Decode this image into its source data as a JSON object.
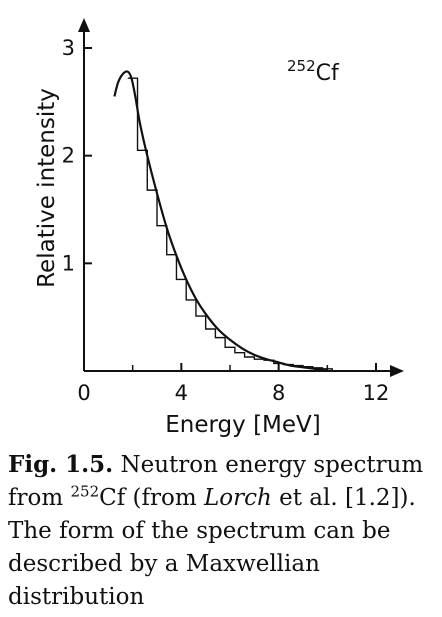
{
  "chart_data": {
    "type": "line",
    "xlabel": "Energy [MeV]",
    "ylabel": "Relative intensity",
    "annotation": {
      "mass": "252",
      "element": "Cf"
    },
    "xlim": [
      0,
      12.7
    ],
    "ylim": [
      0,
      3.3
    ],
    "x_ticks": [
      0,
      4,
      8,
      12
    ],
    "y_ticks": [
      1,
      2,
      3
    ],
    "x_minor_ticks": [
      2,
      6,
      10
    ],
    "series": [
      {
        "style": "histogram",
        "bin_edges": [
          1.8,
          2.2,
          2.6,
          3.0,
          3.4,
          3.8,
          4.2,
          4.6,
          5.0,
          5.4,
          5.8,
          6.2,
          6.6,
          7.0,
          7.4,
          7.8,
          8.2,
          8.6,
          9.0,
          9.4,
          9.8,
          10.2
        ],
        "values": [
          2.72,
          2.05,
          1.68,
          1.35,
          1.08,
          0.85,
          0.66,
          0.51,
          0.39,
          0.31,
          0.22,
          0.17,
          0.13,
          0.11,
          0.1,
          0.07,
          0.06,
          0.05,
          0.04,
          0.03,
          0.02
        ]
      },
      {
        "style": "curve",
        "x": [
          1.25,
          1.4,
          1.6,
          1.8,
          1.95,
          2.1,
          2.3,
          2.6,
          3.0,
          3.4,
          3.8,
          4.2,
          4.6,
          5.0,
          5.5,
          6.0,
          6.5,
          7.0,
          7.5,
          8.0,
          8.5,
          9.0,
          9.5,
          10.0
        ],
        "y": [
          2.55,
          2.68,
          2.76,
          2.78,
          2.72,
          2.56,
          2.3,
          2.0,
          1.65,
          1.33,
          1.07,
          0.85,
          0.67,
          0.53,
          0.39,
          0.29,
          0.21,
          0.15,
          0.11,
          0.08,
          0.05,
          0.035,
          0.02,
          0.01
        ]
      }
    ]
  },
  "caption": {
    "fig_label": "Fig. 1.5.",
    "text_1": " Neutron energy spectrum from ",
    "iso_mass": "252",
    "iso_element": "Cf",
    "text_2": " (from ",
    "author": "Lorch",
    "text_3": " et al. [1.2]). The form of the spectrum can be described by a Maxwellian distribution"
  }
}
